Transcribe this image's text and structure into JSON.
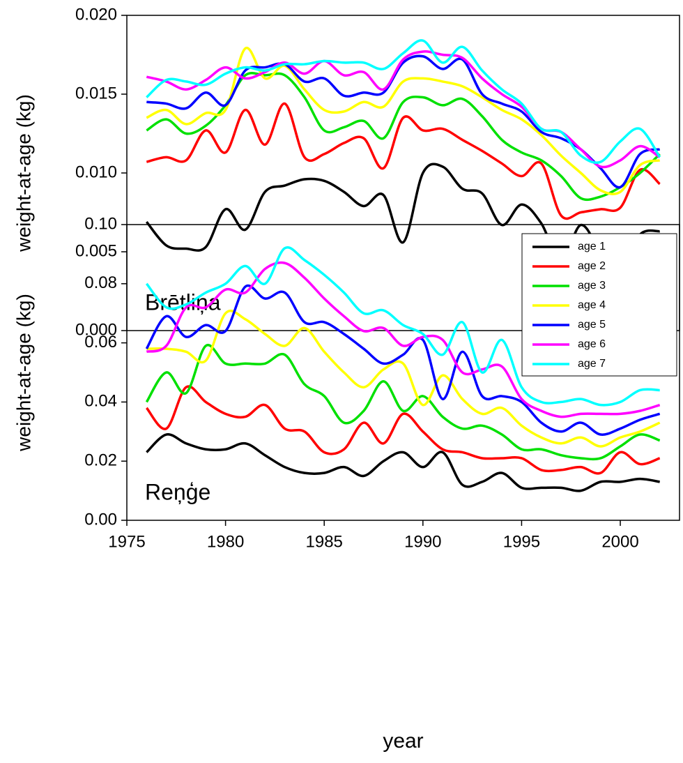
{
  "chart_data": [
    {
      "type": "line",
      "ylabel": "weight-at-age (kg)",
      "annotation": "Brētliņa",
      "x": [
        1976,
        1977,
        1978,
        1979,
        1980,
        1981,
        1982,
        1983,
        1984,
        1985,
        1986,
        1987,
        1988,
        1989,
        1990,
        1991,
        1992,
        1993,
        1994,
        1995,
        1996,
        1997,
        1998,
        1999,
        2000,
        2001,
        2002
      ],
      "xlim": [
        1975,
        2003
      ],
      "ylim": [
        0,
        0.02
      ],
      "yticks": [
        {
          "value": 0,
          "label": "0.000"
        },
        {
          "value": 0.005,
          "label": "0.005"
        },
        {
          "value": 0.01,
          "label": "0.010"
        },
        {
          "value": 0.015,
          "label": "0.015"
        },
        {
          "value": 0.02,
          "label": "0.020"
        }
      ],
      "series": [
        {
          "color": "#000000",
          "values": [
            0.0069,
            0.0054,
            0.0052,
            0.0053,
            0.0077,
            0.0064,
            0.0088,
            0.0092,
            0.0096,
            0.0095,
            0.0088,
            0.0079,
            0.0086,
            0.0056,
            0.01,
            0.0104,
            0.009,
            0.0087,
            0.0067,
            0.008,
            0.0068,
            0.0044,
            0.0067,
            0.005,
            0.0038,
            0.0061,
            0.0063
          ]
        },
        {
          "color": "#ff0000",
          "values": [
            0.0107,
            0.011,
            0.0108,
            0.0127,
            0.0113,
            0.014,
            0.0118,
            0.0144,
            0.011,
            0.0112,
            0.0119,
            0.0122,
            0.0103,
            0.0135,
            0.0127,
            0.0128,
            0.0121,
            0.0114,
            0.0106,
            0.0098,
            0.0106,
            0.0073,
            0.0075,
            0.0077,
            0.0078,
            0.0102,
            0.0093
          ]
        },
        {
          "color": "#00e000",
          "values": [
            0.0127,
            0.0134,
            0.0125,
            0.013,
            0.0143,
            0.0162,
            0.0162,
            0.0162,
            0.0148,
            0.0127,
            0.0129,
            0.0133,
            0.0122,
            0.0145,
            0.0148,
            0.0143,
            0.0147,
            0.0136,
            0.0121,
            0.0113,
            0.0108,
            0.0098,
            0.0084,
            0.0085,
            0.0091,
            0.01,
            0.0112
          ]
        },
        {
          "color": "#ffff00",
          "values": [
            0.0135,
            0.014,
            0.0131,
            0.0138,
            0.014,
            0.0179,
            0.016,
            0.0168,
            0.0153,
            0.014,
            0.0139,
            0.0145,
            0.0142,
            0.0158,
            0.016,
            0.0158,
            0.0155,
            0.0148,
            0.014,
            0.0134,
            0.0124,
            0.0111,
            0.01,
            0.0089,
            0.0088,
            0.0105,
            0.0108
          ]
        },
        {
          "color": "#0000ff",
          "values": [
            0.0145,
            0.0144,
            0.0141,
            0.0151,
            0.0143,
            0.0165,
            0.0167,
            0.0169,
            0.0158,
            0.016,
            0.0149,
            0.0151,
            0.0151,
            0.017,
            0.0174,
            0.0166,
            0.0172,
            0.015,
            0.0144,
            0.0139,
            0.0126,
            0.0122,
            0.0115,
            0.0103,
            0.0091,
            0.0112,
            0.0115
          ]
        },
        {
          "color": "#ff00ff",
          "values": [
            0.0161,
            0.0158,
            0.0153,
            0.0159,
            0.0167,
            0.016,
            0.0164,
            0.017,
            0.0163,
            0.0171,
            0.0162,
            0.0164,
            0.0153,
            0.0172,
            0.0177,
            0.0175,
            0.0173,
            0.016,
            0.015,
            0.0142,
            0.0128,
            0.0126,
            0.0115,
            0.0104,
            0.0108,
            0.0117,
            0.011
          ]
        },
        {
          "color": "#00ffff",
          "values": [
            0.0148,
            0.0159,
            0.0158,
            0.0156,
            0.0163,
            0.0167,
            0.0165,
            0.0169,
            0.0169,
            0.0171,
            0.017,
            0.017,
            0.0166,
            0.0176,
            0.0184,
            0.017,
            0.018,
            0.0165,
            0.0153,
            0.0144,
            0.0128,
            0.0126,
            0.0111,
            0.0107,
            0.012,
            0.0128,
            0.011
          ]
        }
      ]
    },
    {
      "type": "line",
      "ylabel": "weight-at-age (kg)",
      "xlabel": "year",
      "annotation": "Reņģe",
      "legend": "upper right",
      "x": [
        1976,
        1977,
        1978,
        1979,
        1980,
        1981,
        1982,
        1983,
        1984,
        1985,
        1986,
        1987,
        1988,
        1989,
        1990,
        1991,
        1992,
        1993,
        1994,
        1995,
        1996,
        1997,
        1998,
        1999,
        2000,
        2001,
        2002
      ],
      "xlim": [
        1975,
        2003
      ],
      "xticks": [
        1975,
        1980,
        1985,
        1990,
        1995,
        2000
      ],
      "ylim": [
        0,
        0.1
      ],
      "yticks": [
        {
          "value": 0,
          "label": "0.00"
        },
        {
          "value": 0.02,
          "label": "0.02"
        },
        {
          "value": 0.04,
          "label": "0.04"
        },
        {
          "value": 0.06,
          "label": "0.06"
        },
        {
          "value": 0.08,
          "label": "0.08"
        },
        {
          "value": 0.1,
          "label": "0.10"
        }
      ],
      "series": [
        {
          "name": "age 1",
          "color": "#000000",
          "values": [
            0.023,
            0.029,
            0.026,
            0.024,
            0.024,
            0.026,
            0.022,
            0.018,
            0.016,
            0.016,
            0.018,
            0.015,
            0.02,
            0.023,
            0.018,
            0.023,
            0.012,
            0.013,
            0.016,
            0.011,
            0.011,
            0.011,
            0.01,
            0.013,
            0.013,
            0.014,
            0.013
          ]
        },
        {
          "name": "age 2",
          "color": "#ff0000",
          "values": [
            0.038,
            0.031,
            0.045,
            0.04,
            0.036,
            0.035,
            0.039,
            0.031,
            0.03,
            0.023,
            0.024,
            0.033,
            0.026,
            0.036,
            0.03,
            0.024,
            0.023,
            0.021,
            0.021,
            0.021,
            0.017,
            0.017,
            0.018,
            0.016,
            0.023,
            0.019,
            0.021
          ]
        },
        {
          "name": "age 3",
          "color": "#00e000",
          "values": [
            0.04,
            0.05,
            0.043,
            0.059,
            0.053,
            0.053,
            0.053,
            0.056,
            0.046,
            0.042,
            0.033,
            0.037,
            0.047,
            0.037,
            0.042,
            0.035,
            0.031,
            0.032,
            0.029,
            0.024,
            0.024,
            0.022,
            0.021,
            0.021,
            0.025,
            0.029,
            0.027
          ]
        },
        {
          "name": "age 4",
          "color": "#ffff00",
          "values": [
            0.058,
            0.058,
            0.057,
            0.054,
            0.07,
            0.068,
            0.063,
            0.059,
            0.065,
            0.057,
            0.05,
            0.045,
            0.051,
            0.053,
            0.039,
            0.049,
            0.041,
            0.036,
            0.038,
            0.032,
            0.028,
            0.026,
            0.028,
            0.025,
            0.028,
            0.03,
            0.033
          ]
        },
        {
          "name": "age 5",
          "color": "#0000ff",
          "values": [
            0.058,
            0.069,
            0.062,
            0.066,
            0.064,
            0.079,
            0.075,
            0.077,
            0.067,
            0.067,
            0.063,
            0.058,
            0.053,
            0.056,
            0.061,
            0.041,
            0.057,
            0.042,
            0.042,
            0.04,
            0.033,
            0.03,
            0.033,
            0.029,
            0.031,
            0.034,
            0.036
          ]
        },
        {
          "name": "age 6",
          "color": "#ff00ff",
          "values": [
            0.057,
            0.059,
            0.072,
            0.072,
            0.078,
            0.077,
            0.085,
            0.087,
            0.082,
            0.075,
            0.069,
            0.064,
            0.065,
            0.059,
            0.062,
            0.061,
            0.05,
            0.051,
            0.052,
            0.041,
            0.037,
            0.035,
            0.036,
            0.036,
            0.036,
            0.037,
            0.039
          ]
        },
        {
          "name": "age 7",
          "color": "#00ffff",
          "values": [
            0.08,
            0.072,
            0.073,
            0.077,
            0.08,
            0.086,
            0.08,
            0.092,
            0.088,
            0.083,
            0.077,
            0.07,
            0.071,
            0.066,
            0.063,
            0.056,
            0.067,
            0.05,
            0.061,
            0.045,
            0.04,
            0.04,
            0.041,
            0.039,
            0.04,
            0.044,
            0.044
          ]
        }
      ]
    }
  ]
}
